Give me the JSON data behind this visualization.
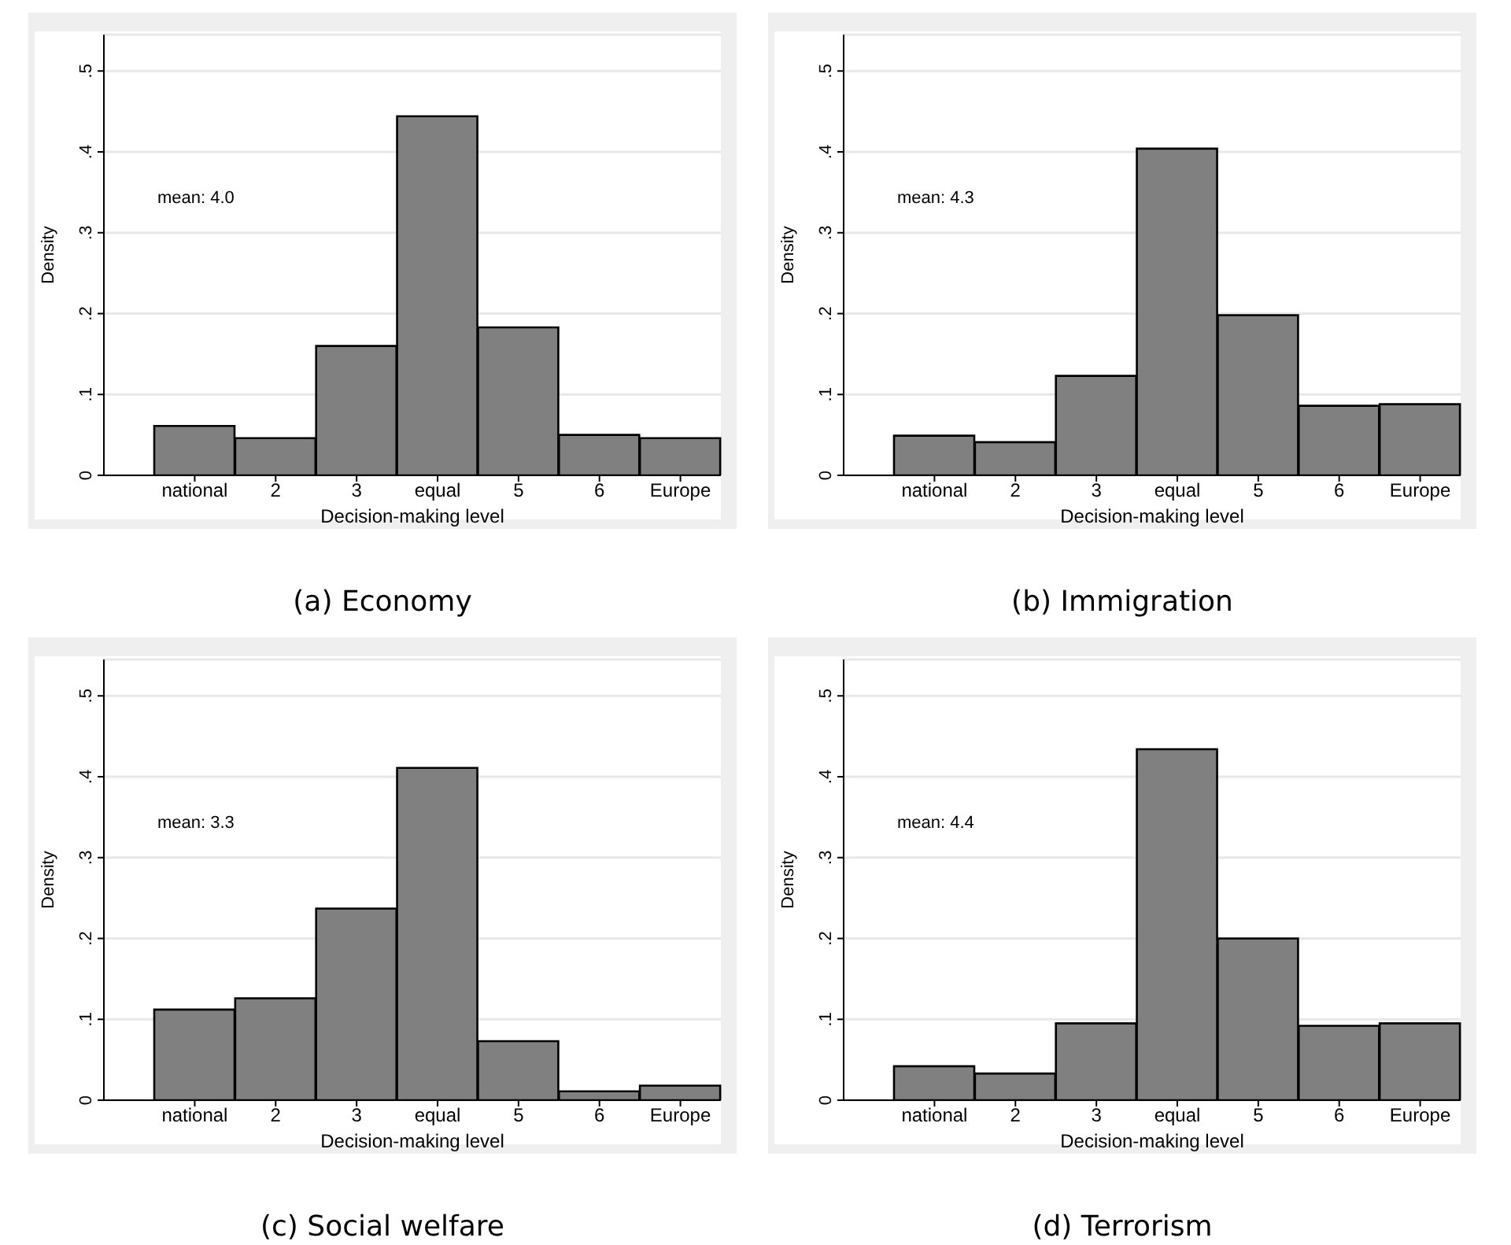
{
  "chart_data": [
    {
      "type": "bar",
      "title": "(a)  Economy",
      "xlabel": "Decision-making level",
      "ylabel": "Density",
      "annotations": [
        "mean: 4.0"
      ],
      "categories": [
        "national",
        "2",
        "3",
        "equal",
        "5",
        "6",
        "Europe"
      ],
      "values": [
        0.061,
        0.046,
        0.16,
        0.444,
        0.183,
        0.05,
        0.046
      ],
      "color": "#808080",
      "ylim": [
        0,
        0.545
      ],
      "yticks": [
        {
          "value": 0,
          "label": "0"
        },
        {
          "value": 0.1,
          "label": ".1"
        },
        {
          "value": 0.2,
          "label": ".2"
        },
        {
          "value": 0.3,
          "label": ".3"
        },
        {
          "value": 0.4,
          "label": ".4"
        },
        {
          "value": 0.5,
          "label": ".5"
        }
      ],
      "grid": "y"
    },
    {
      "type": "bar",
      "title": "(b)  Immigration",
      "xlabel": "Decision-making level",
      "ylabel": "Density",
      "annotations": [
        "mean: 4.3"
      ],
      "categories": [
        "national",
        "2",
        "3",
        "equal",
        "5",
        "6",
        "Europe"
      ],
      "values": [
        0.049,
        0.041,
        0.123,
        0.404,
        0.198,
        0.086,
        0.088
      ],
      "color": "#808080",
      "ylim": [
        0,
        0.545
      ],
      "yticks": [
        {
          "value": 0,
          "label": "0"
        },
        {
          "value": 0.1,
          "label": ".1"
        },
        {
          "value": 0.2,
          "label": ".2"
        },
        {
          "value": 0.3,
          "label": ".3"
        },
        {
          "value": 0.4,
          "label": ".4"
        },
        {
          "value": 0.5,
          "label": ".5"
        }
      ],
      "grid": "y"
    },
    {
      "type": "bar",
      "title": "(c)  Social welfare",
      "xlabel": "Decision-making level",
      "ylabel": "Density",
      "annotations": [
        "mean: 3.3"
      ],
      "categories": [
        "national",
        "2",
        "3",
        "equal",
        "5",
        "6",
        "Europe"
      ],
      "values": [
        0.112,
        0.126,
        0.237,
        0.411,
        0.073,
        0.011,
        0.018
      ],
      "color": "#808080",
      "ylim": [
        0,
        0.545
      ],
      "yticks": [
        {
          "value": 0,
          "label": "0"
        },
        {
          "value": 0.1,
          "label": ".1"
        },
        {
          "value": 0.2,
          "label": ".2"
        },
        {
          "value": 0.3,
          "label": ".3"
        },
        {
          "value": 0.4,
          "label": ".4"
        },
        {
          "value": 0.5,
          "label": ".5"
        }
      ],
      "grid": "y"
    },
    {
      "type": "bar",
      "title": "(d)  Terrorism",
      "xlabel": "Decision-making level",
      "ylabel": "Density",
      "annotations": [
        "mean: 4.4"
      ],
      "categories": [
        "national",
        "2",
        "3",
        "equal",
        "5",
        "6",
        "Europe"
      ],
      "values": [
        0.042,
        0.033,
        0.095,
        0.434,
        0.2,
        0.092,
        0.095
      ],
      "color": "#808080",
      "ylim": [
        0,
        0.545
      ],
      "yticks": [
        {
          "value": 0,
          "label": "0"
        },
        {
          "value": 0.1,
          "label": ".1"
        },
        {
          "value": 0.2,
          "label": ".2"
        },
        {
          "value": 0.3,
          "label": ".3"
        },
        {
          "value": 0.4,
          "label": ".4"
        },
        {
          "value": 0.5,
          "label": ".5"
        }
      ],
      "grid": "y"
    }
  ]
}
